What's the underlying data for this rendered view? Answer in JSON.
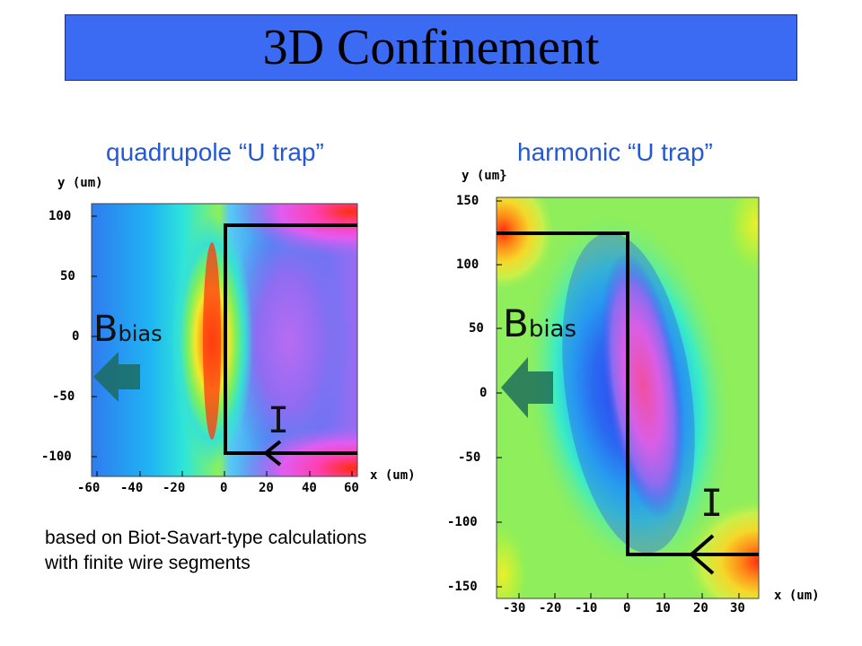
{
  "slide": {
    "title": "3D Confinement",
    "note": "based on Biot-Savart-type calculations with finite wire segments"
  },
  "plots": {
    "left": {
      "heading": "quadrupole “U trap”",
      "y_axis_label": "y (um)",
      "x_axis_label": "x (um)",
      "y_ticks": [
        "100",
        "50",
        "0",
        "-50",
        "-100"
      ],
      "x_ticks": [
        "-60",
        "-40",
        "-20",
        "0",
        "20",
        "40",
        "60"
      ],
      "field_label": "B",
      "field_subscript": "bias",
      "current_label": "I"
    },
    "right": {
      "heading": "harmonic “U trap”",
      "y_axis_label": "y (um}",
      "x_axis_label": "x (um)",
      "y_ticks": [
        "150",
        "100",
        "50",
        "0",
        "-50",
        "-100",
        "-150"
      ],
      "x_ticks": [
        "-30",
        "-20",
        "-10",
        "0",
        "10",
        "20",
        "30"
      ],
      "field_label": "B",
      "field_subscript": "bias",
      "current_label": "I"
    }
  },
  "colors": {
    "title_bar": "#3a6bf2",
    "heading_text": "#2458d6",
    "wire": "#000000",
    "arrow": "#1b6a5a"
  }
}
